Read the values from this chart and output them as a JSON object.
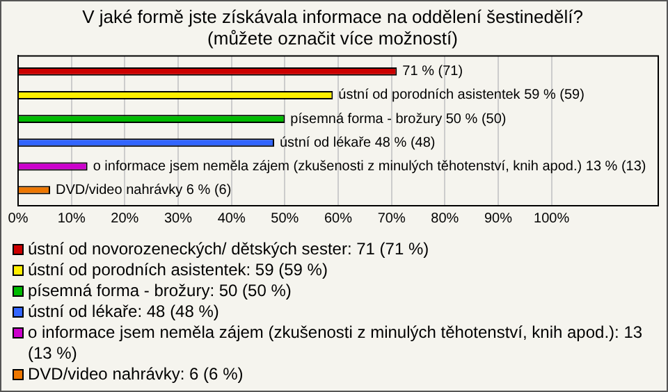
{
  "chart_data": {
    "type": "bar",
    "orientation": "horizontal",
    "title": "V jaké formě jste získávala informace na oddělení šestinedělí?",
    "subtitle": "(můžete označit více možností)",
    "categories": [
      null
    ],
    "series": [
      {
        "name": "ústní od novorozeneckých/ dětských sester: 71 (71 %)",
        "color": "#cc0000",
        "values": [
          71
        ],
        "value_labels": [
          "71 % (71)"
        ]
      },
      {
        "name": "ústní od porodních asistentek: 59 (59 %)",
        "color": "#ffee00",
        "values": [
          59
        ],
        "value_labels": [
          "ústní od porodních asistentek 59 % (59)"
        ]
      },
      {
        "name": "písemná forma - brožury: 50 (50 %)",
        "color": "#00bb00",
        "values": [
          50
        ],
        "value_labels": [
          "písemná forma - brožury 50 % (50)"
        ]
      },
      {
        "name": "ústní od lékaře: 48 (48 %)",
        "color": "#3366ff",
        "values": [
          48
        ],
        "value_labels": [
          "ústní od lékaře 48 % (48)"
        ]
      },
      {
        "name": "o informace jsem neměla zájem (zkušenosti z minulých těhotenství, knih apod.): 13 (13 %)",
        "color": "#cc00cc",
        "values": [
          13
        ],
        "value_labels": [
          "o informace jsem neměla zájem (zkušenosti z minulých těhotenství, knih apod.) 13 % (13)"
        ]
      },
      {
        "name": "DVD/video nahrávky: 6 (6 %)",
        "color": "#ee7700",
        "values": [
          6
        ],
        "value_labels": [
          "DVD/video nahrávky 6 % (6)"
        ]
      }
    ],
    "xlim": [
      0,
      120
    ],
    "xticks": [
      {
        "value": 0,
        "label": "0%"
      },
      {
        "value": 10,
        "label": "10%"
      },
      {
        "value": 20,
        "label": "20%"
      },
      {
        "value": 30,
        "label": "30%"
      },
      {
        "value": 40,
        "label": "40%"
      },
      {
        "value": 50,
        "label": "50%"
      },
      {
        "value": 60,
        "label": "60%"
      },
      {
        "value": 70,
        "label": "70%"
      },
      {
        "value": 80,
        "label": "80%"
      },
      {
        "value": 90,
        "label": "90%"
      },
      {
        "value": 100,
        "label": "100%"
      }
    ],
    "grid": "x",
    "tick_labels": "x",
    "legend": "bottom"
  }
}
